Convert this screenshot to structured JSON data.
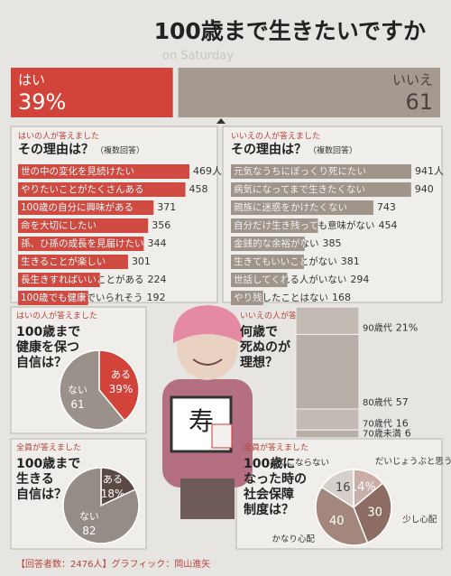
{
  "header": {
    "title": "100歳まで生きたいですか",
    "watermark": "on Saturday"
  },
  "chart_data": [
    {
      "type": "split",
      "categories": [
        "はい",
        "いいえ"
      ],
      "values": [
        39,
        61
      ],
      "value_labels": [
        "39%",
        "61"
      ],
      "colors": [
        "#d2433a",
        "#a49a90"
      ]
    },
    {
      "type": "hbar",
      "note": "はいの人が答えました",
      "title": "その理由は？",
      "subtitle": "（複数回答）",
      "color": "#cf4a40",
      "categories": [
        "世の中の変化を見続けたい",
        "やりたいことがたくさんある",
        "100歳の自分に興味がある",
        "命を大切にしたい",
        "孫、ひ孫の成長を見届けたい",
        "生きることが楽しい",
        "長生きすればいいことがある",
        "100歳でも健康でいられそう"
      ],
      "values": [
        469,
        458,
        371,
        356,
        344,
        301,
        224,
        192
      ],
      "value_labels": [
        "469人",
        "458",
        "371",
        "356",
        "344",
        "301",
        "224",
        "192"
      ]
    },
    {
      "type": "hbar",
      "note": "いいえの人が答えました",
      "title": "その理由は？",
      "subtitle": "（複数回答）",
      "color": "#a0958a",
      "categories": [
        "元気なうちにぽっくり死にたい",
        "病気になってまで生きたくない",
        "親族に迷惑をかけたくない",
        "自分だけ生き残っても意味がない",
        "金銭的な余裕がない",
        "生きてもいいことがない",
        "世話してくれる人がいない",
        "やり残したことはない"
      ],
      "values": [
        941,
        940,
        743,
        454,
        385,
        381,
        294,
        168
      ],
      "value_labels": [
        "941人",
        "940",
        "743",
        "454",
        "385",
        "381",
        "294",
        "168"
      ]
    },
    {
      "type": "pie",
      "note": "はいの人が答えました",
      "title_lines": [
        "100歳まで",
        "健康を保つ",
        "自信は？"
      ],
      "categories": [
        "ある",
        "ない"
      ],
      "values": [
        39,
        61
      ],
      "value_labels": [
        "39%",
        "61"
      ],
      "colors": [
        "#d2433a",
        "#9a918a"
      ]
    },
    {
      "type": "stacked",
      "note": "いいえの人が答えました",
      "title_lines": [
        "何歳で",
        "死ぬのが",
        "理想？"
      ],
      "categories": [
        "90歳代",
        "80歳代",
        "70歳代",
        "70歳未満"
      ],
      "values": [
        21,
        57,
        16,
        6
      ],
      "value_labels": [
        "21%",
        "57",
        "16",
        "6"
      ],
      "colors": [
        "#c2bab3",
        "#b6aea7",
        "#c2bab3",
        "#b6aea7"
      ]
    },
    {
      "type": "pie",
      "note": "全員が答えました",
      "title_lines": [
        "100歳まで",
        "生きる",
        "自信は？"
      ],
      "categories": [
        "ある",
        "ない"
      ],
      "values": [
        18,
        82
      ],
      "value_labels": [
        "18%",
        "82"
      ],
      "colors": [
        "#5b4a44",
        "#958c86"
      ]
    },
    {
      "type": "pie",
      "note": "全員が答えました",
      "title_lines": [
        "100歳に",
        "なった時の",
        "社会保障",
        "制度は？"
      ],
      "categories": [
        "だいじょうぶと思う",
        "少し心配",
        "かなり心配",
        "あてにならない"
      ],
      "values": [
        14,
        30,
        40,
        16
      ],
      "value_labels": [
        "14%",
        "30",
        "40",
        "16"
      ],
      "colors": [
        "#c8aea6",
        "#8c6c63",
        "#a3877d",
        "#d6d0cb"
      ]
    }
  ],
  "illustration": {
    "sign": "寿"
  },
  "footer": "【回答者数：2476人】グラフィック：岡山進矢"
}
